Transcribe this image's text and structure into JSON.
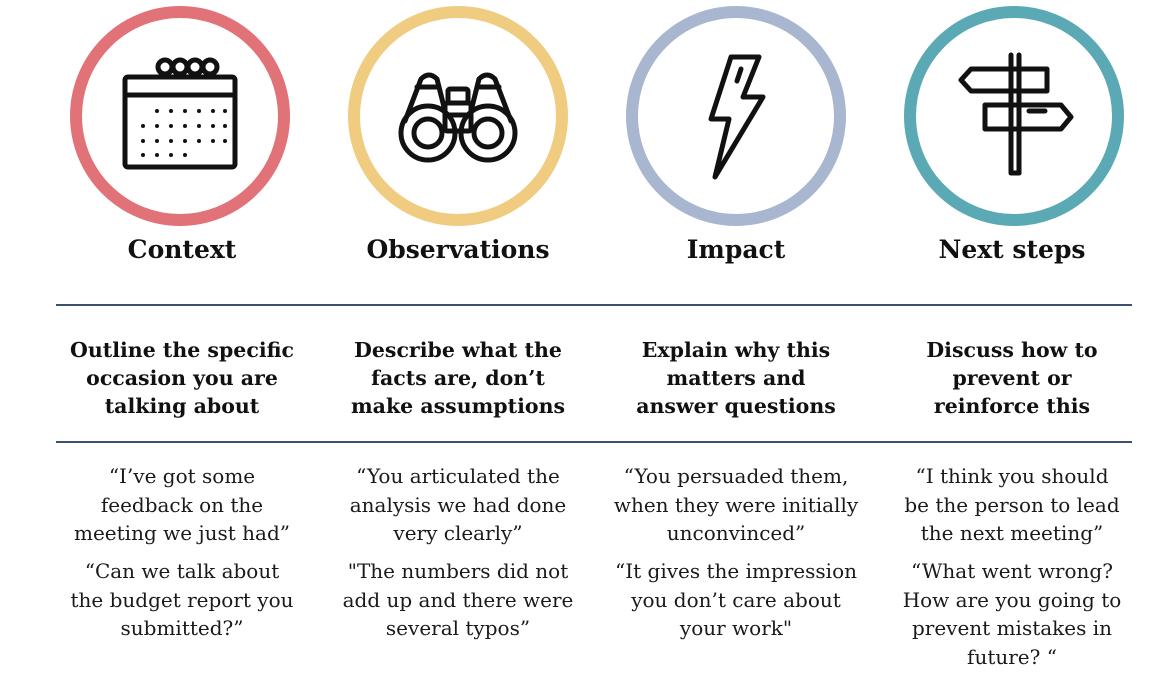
{
  "columns": [
    {
      "title": "Context",
      "icon": "calendar-icon",
      "ring_color": "#e07278",
      "description": [
        "Outline the specific",
        "occasion you are",
        "talking about"
      ],
      "quote1": [
        "“I’ve got some",
        "feedback on the",
        "meeting we just had”"
      ],
      "quote2": [
        "“Can we talk about",
        "the budget report you",
        "submitted?”"
      ]
    },
    {
      "title": "Observations",
      "icon": "binoculars-icon",
      "ring_color": "#f0cc80",
      "description": [
        "Describe what the",
        "facts are, don’t",
        "make assumptions"
      ],
      "quote1": [
        "“You articulated the",
        "analysis we had done",
        "very clearly”"
      ],
      "quote2": [
        "\"The numbers did not",
        "add up and there were",
        "several typos”"
      ]
    },
    {
      "title": "Impact",
      "icon": "lightning-bolt-icon",
      "ring_color": "#a9b6cf",
      "description": [
        "Explain why this",
        "matters and",
        "answer questions"
      ],
      "quote1": [
        "“You persuaded them,",
        "when they were initially",
        "unconvinced”"
      ],
      "quote2": [
        "“It gives the impression",
        "you don’t care about",
        "your work\""
      ]
    },
    {
      "title": "Next steps",
      "icon": "signpost-icon",
      "ring_color": "#5ba9b5",
      "description": [
        "Discuss how to",
        "prevent or",
        "reinforce this"
      ],
      "quote1": [
        "“I think you should",
        "be the person to lead",
        "the next meeting”"
      ],
      "quote2": [
        "“What went wrong?",
        "How are you going to",
        "prevent mistakes in",
        "future? “"
      ]
    }
  ]
}
